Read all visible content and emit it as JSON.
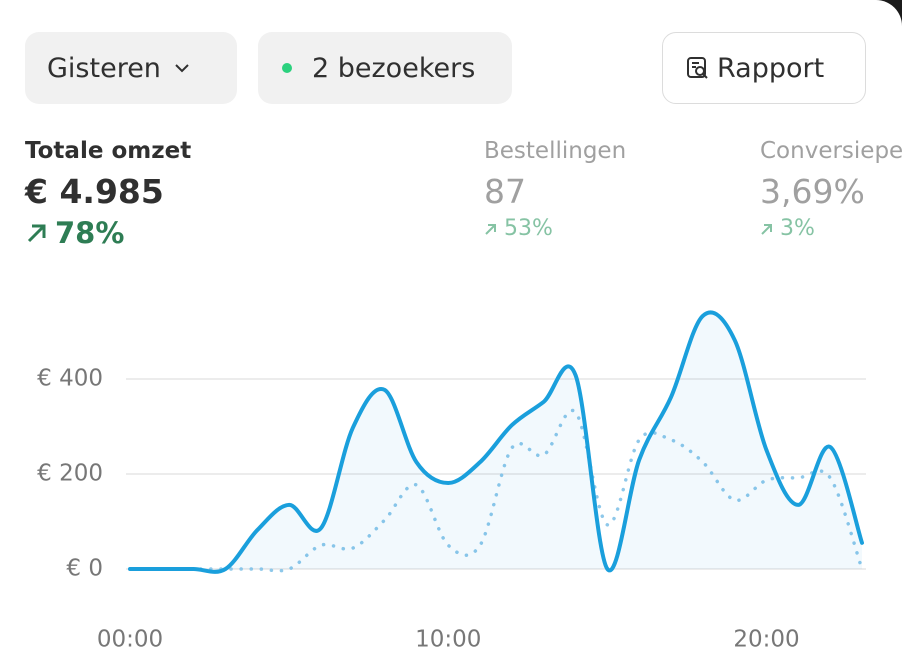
{
  "filters": {
    "period": "Gisteren",
    "visitors": "2 bezoekers"
  },
  "report_button": "Rapport",
  "metrics": [
    {
      "label": "Totale omzet",
      "value": "€ 4.985",
      "change": "78%"
    },
    {
      "label": "Bestellingen",
      "value": "87",
      "change": "53%"
    },
    {
      "label": "Conversiepercentage",
      "value": "3,69%",
      "change": "3%"
    }
  ],
  "chart_data": {
    "type": "line",
    "x": [
      0,
      1,
      2,
      3,
      4,
      5,
      6,
      7,
      8,
      9,
      10,
      11,
      12,
      13,
      14,
      15,
      16,
      17,
      18,
      19,
      20,
      21,
      22,
      23
    ],
    "xlim": [
      0,
      23
    ],
    "xticks": [
      {
        "value": 0,
        "label": "00:00"
      },
      {
        "value": 10,
        "label": "10:00"
      },
      {
        "value": 20,
        "label": "20:00"
      }
    ],
    "ylim": [
      0,
      600
    ],
    "yticks": [
      {
        "value": 0,
        "label": "€ 0"
      },
      {
        "value": 200,
        "label": "€ 200"
      },
      {
        "value": 400,
        "label": "€ 400"
      }
    ],
    "grid": true,
    "series": [
      {
        "color": "#1a9fdc",
        "style": "solid",
        "area": true,
        "values": [
          0,
          0,
          0,
          0,
          82,
          135,
          86,
          297,
          377,
          225,
          181,
          225,
          303,
          352,
          408,
          0,
          230,
          362,
          533,
          482,
          250,
          135,
          257,
          55
        ]
      },
      {
        "color": "#8ec8ea",
        "style": "dotted",
        "area": false,
        "values": [
          0,
          0,
          0,
          0,
          0,
          0,
          50,
          44,
          103,
          177,
          50,
          50,
          255,
          240,
          330,
          93,
          272,
          272,
          225,
          145,
          187,
          192,
          192,
          0
        ]
      }
    ]
  }
}
